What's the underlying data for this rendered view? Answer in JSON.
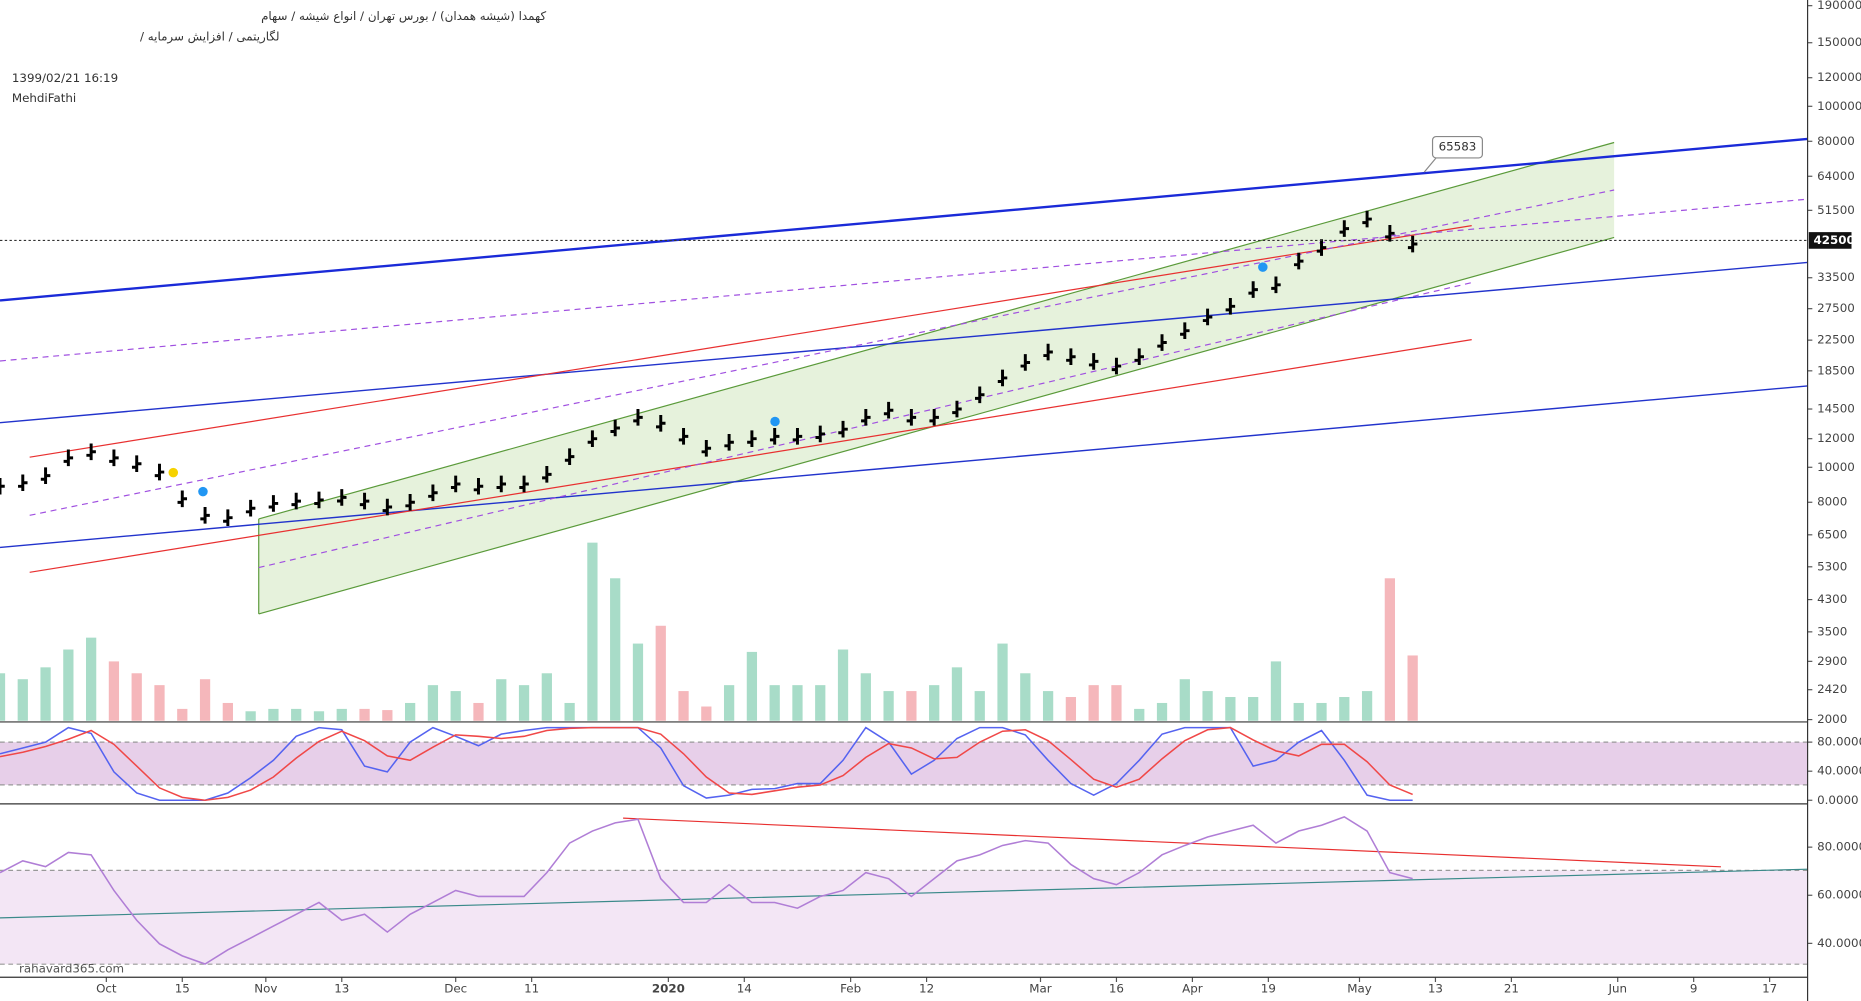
{
  "header": {
    "symbol_line": "کهمدا (شیشه همدان) / بورس تهران / انواع شیشه / سهام",
    "options_line": "لگاریتمی / افزایش سرمایه /",
    "date": "1399/02/21 16:19",
    "author": "MehdiFathi"
  },
  "watermark": "rahavard365.com",
  "callout": 65583,
  "chart_data": [
    {
      "type": "ohlc",
      "color": "#000000",
      "log_scale": true,
      "x": [
        0,
        3,
        6,
        9,
        12,
        15,
        18,
        21,
        24,
        27,
        30,
        33,
        36,
        39,
        42,
        45,
        48,
        51,
        54,
        57,
        60,
        63,
        66,
        69,
        72,
        75,
        78,
        81,
        84,
        87,
        90,
        93,
        96,
        99,
        102,
        105,
        108,
        111,
        114,
        117,
        120,
        123,
        126,
        129,
        132,
        135,
        138,
        141,
        144,
        147,
        150,
        153,
        156,
        159,
        162,
        165,
        168,
        171,
        174,
        177,
        180,
        183,
        186
      ],
      "values": [
        8860,
        9060,
        9480,
        10620,
        11040,
        10620,
        10230,
        9700,
        8180,
        7360,
        7250,
        7700,
        7940,
        8060,
        8120,
        8250,
        8060,
        7760,
        8000,
        8500,
        8990,
        8860,
        8990,
        8990,
        9560,
        10700,
        12000,
        12850,
        13750,
        13240,
        12180,
        11290,
        11730,
        12000,
        12180,
        12180,
        12370,
        12750,
        13750,
        14390,
        13750,
        13750,
        14500,
        15880,
        17680,
        19510,
        20860,
        20240,
        19650,
        19070,
        20240,
        22160,
        23900,
        26080,
        27920,
        31060,
        32020,
        37250,
        40610,
        45840,
        48710,
        44480,
        41540
      ],
      "volume": [
        40,
        35,
        45,
        60,
        70,
        50,
        40,
        30,
        10,
        35,
        15,
        8,
        10,
        10,
        8,
        10,
        10,
        9,
        15,
        30,
        25,
        15,
        35,
        30,
        40,
        15,
        150,
        120,
        65,
        80,
        25,
        12,
        30,
        58,
        30,
        30,
        30,
        60,
        40,
        25,
        25,
        30,
        45,
        25,
        65,
        40,
        25,
        20,
        30,
        30,
        10,
        15,
        35,
        25,
        20,
        20,
        50,
        15,
        15,
        20,
        25,
        120,
        55
      ],
      "last_price": 42500,
      "xlim": [
        0,
        238
      ],
      "xticks": [
        {
          "value": 14,
          "label": "Oct"
        },
        {
          "value": 24,
          "label": "15"
        },
        {
          "value": 35,
          "label": "Nov"
        },
        {
          "value": 45,
          "label": "13"
        },
        {
          "value": 60,
          "label": "Dec"
        },
        {
          "value": 70,
          "label": "11"
        },
        {
          "value": 88,
          "label": "2020"
        },
        {
          "value": 98,
          "label": "14"
        },
        {
          "value": 112,
          "label": "Feb"
        },
        {
          "value": 122,
          "label": "12"
        },
        {
          "value": 137,
          "label": "Mar"
        },
        {
          "value": 147,
          "label": "16"
        },
        {
          "value": 157,
          "label": "Apr"
        },
        {
          "value": 167,
          "label": "19"
        },
        {
          "value": 179,
          "label": "May"
        },
        {
          "value": 189,
          "label": "13"
        },
        {
          "value": 199,
          "label": "21"
        },
        {
          "value": 213,
          "label": "Jun"
        },
        {
          "value": 223,
          "label": "9"
        },
        {
          "value": 233,
          "label": "17"
        }
      ],
      "ylim": [
        1985,
        197000
      ],
      "yticks": [
        190000,
        150000,
        120000,
        100000,
        80000,
        64000,
        51500,
        33500,
        27500,
        22500,
        18500,
        14500,
        12000,
        10000,
        8000,
        6500,
        5300,
        4300,
        3500,
        2900,
        2420,
        2000
      ]
    },
    {
      "type": "line",
      "series": [
        {
          "color": "#5563f0",
          "values": [
            64,
            72,
            80,
            100,
            92,
            39,
            10,
            0,
            0,
            0,
            10,
            31,
            55,
            88,
            100,
            97,
            47,
            39,
            80,
            100,
            88,
            75,
            91,
            96,
            100,
            100,
            100,
            100,
            100,
            72,
            20,
            3,
            7,
            15,
            16,
            23,
            23,
            55,
            100,
            80,
            36,
            55,
            85,
            100,
            100,
            90,
            55,
            23,
            7,
            23,
            55,
            91,
            100,
            100,
            100,
            47,
            55,
            80,
            96,
            55,
            7,
            0,
            0
          ]
        },
        {
          "color": "#f04848",
          "values": [
            60,
            66,
            74,
            84,
            96,
            77,
            47,
            17,
            4,
            0,
            4,
            14,
            32,
            58,
            81,
            95,
            82,
            61,
            55,
            73,
            90,
            88,
            85,
            88,
            96,
            99,
            100,
            100,
            100,
            91,
            64,
            32,
            10,
            8,
            13,
            18,
            21,
            34,
            59,
            78,
            72,
            57,
            59,
            80,
            95,
            97,
            82,
            56,
            29,
            18,
            29,
            57,
            82,
            97,
            100,
            83,
            68,
            61,
            77,
            77,
            53,
            21,
            8
          ]
        }
      ],
      "ylim": [
        -5,
        104.5
      ],
      "yticks": [
        {
          "value": 80,
          "label": "80.0000"
        },
        {
          "value": 40,
          "label": "40.0000"
        },
        {
          "value": 0,
          "label": "0.0000"
        }
      ]
    },
    {
      "type": "line",
      "series": [
        {
          "color": "#b07ed6",
          "values": [
            69.4,
            74.3,
            71.9,
            77.8,
            76.8,
            62.0,
            49.6,
            39.8,
            34.8,
            31.4,
            37.3,
            42.2,
            47.2,
            52.1,
            57.0,
            49.6,
            52.1,
            44.7,
            52.1,
            57.0,
            62.0,
            59.5,
            59.5,
            59.5,
            69.4,
            81.7,
            86.7,
            90.1,
            91.6,
            66.9,
            57.0,
            57.0,
            64.4,
            57.0,
            57.0,
            54.6,
            59.5,
            62.0,
            69.4,
            66.9,
            59.5,
            66.9,
            74.3,
            76.8,
            80.7,
            82.7,
            81.7,
            72.8,
            66.9,
            64.4,
            69.4,
            76.8,
            80.7,
            84.2,
            86.7,
            89.1,
            81.7,
            86.7,
            89.1,
            92.6,
            86.7,
            69.4,
            66.9
          ]
        }
      ],
      "ylim": [
        26.4,
        97
      ],
      "yticks": [
        {
          "value": 80,
          "label": "80.0000"
        },
        {
          "value": 60,
          "label": "60.0000"
        },
        {
          "value": 40,
          "label": "40.0000"
        }
      ]
    }
  ]
}
